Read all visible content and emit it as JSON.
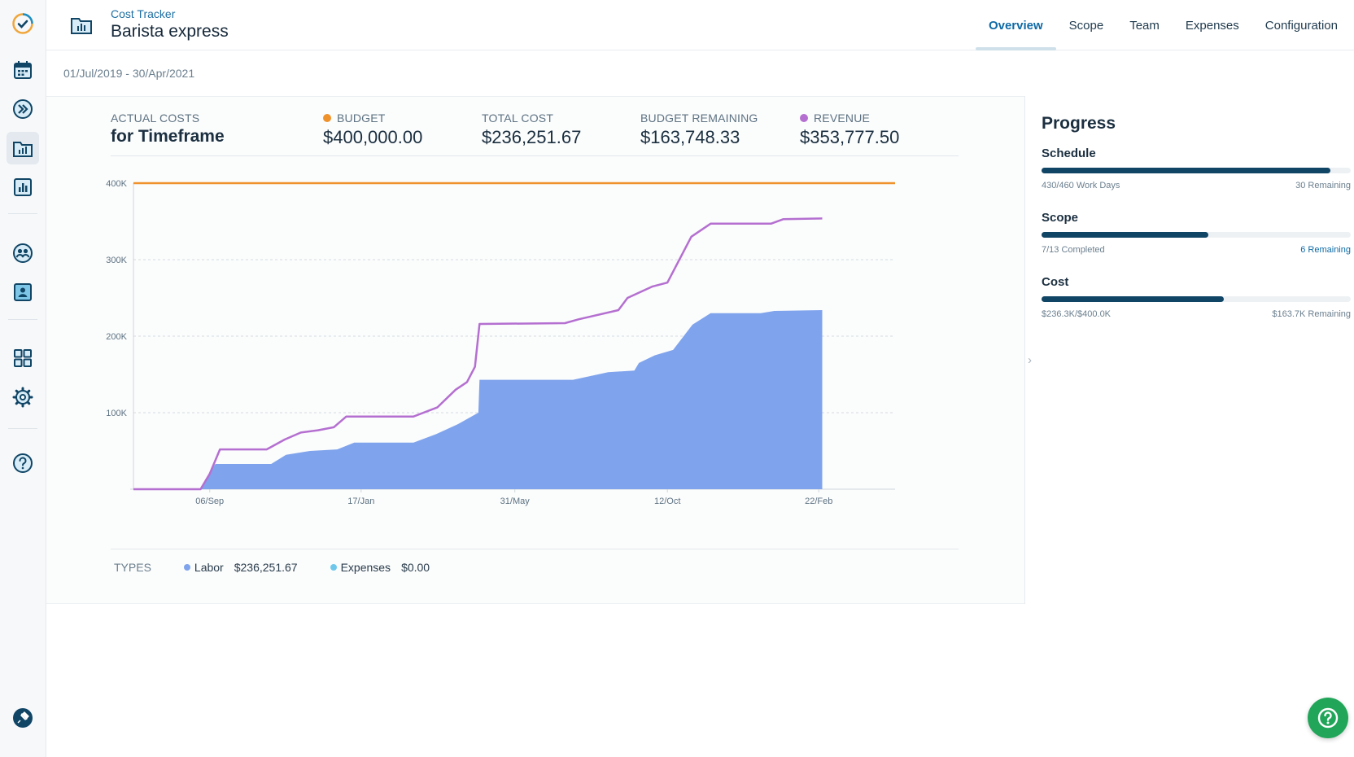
{
  "app": {
    "breadcrumb": "Cost Tracker",
    "title": "Barista express"
  },
  "tabs": [
    {
      "label": "Overview",
      "active": true
    },
    {
      "label": "Scope",
      "active": false
    },
    {
      "label": "Team",
      "active": false
    },
    {
      "label": "Expenses",
      "active": false
    },
    {
      "label": "Configuration",
      "active": false
    }
  ],
  "date_range": "01/Jul/2019 - 30/Apr/2021",
  "rail_icons": [
    "app-logo-icon",
    "calendar-icon",
    "fast-forward-icon",
    "folder-chart-icon",
    "bar-chart-icon",
    "team-icon",
    "contact-icon",
    "dashboard-grid-icon",
    "gear-icon",
    "help-icon",
    "pin-icon"
  ],
  "stats": {
    "actual_costs_label": "ACTUAL COSTS",
    "actual_costs_sub": "for Timeframe",
    "budget_label": "BUDGET",
    "budget_value": "$400,000.00",
    "total_cost_label": "TOTAL COST",
    "total_cost_value": "$236,251.67",
    "budget_remaining_label": "BUDGET REMAINING",
    "budget_remaining_value": "$163,748.33",
    "revenue_label": "REVENUE",
    "revenue_value": "$353,777.50"
  },
  "colors": {
    "budget": "#f0922b",
    "revenue": "#b46fd0",
    "labor": "#7fa3ec",
    "expenses": "#6fc8ec",
    "accent": "#0e6aa5",
    "bar": "#104565"
  },
  "chart_data": {
    "type": "area",
    "x_ticks": [
      "06/Sep",
      "17/Jan",
      "31/May",
      "12/Oct",
      "22/Feb"
    ],
    "y_ticks": [
      "100K",
      "200K",
      "300K",
      "400K"
    ],
    "ylim": [
      0,
      400000
    ],
    "budget_line": 400000,
    "series": [
      {
        "name": "Labor",
        "kind": "area",
        "x": [
          "01/Jul/2019",
          "29/Aug/2019",
          "06/Sep/2019",
          "11/Sep/2019",
          "30/Oct/2019",
          "12/Nov/2019",
          "03/Dec/2019",
          "27/Dec/2019",
          "11/Jan/2020",
          "03/Mar/2020",
          "23/Mar/2020",
          "11/Apr/2020",
          "29/Apr/2020",
          "30/Apr/2020",
          "21/Jul/2020",
          "12/Aug/2020",
          "21/Aug/2020",
          "13/Sep/2020",
          "17/Sep/2020",
          "01/Oct/2020",
          "17/Oct/2020",
          "03/Nov/2020",
          "19/Nov/2020",
          "02/Jan/2021",
          "14/Jan/2021",
          "25/Feb/2021"
        ],
        "y": [
          0,
          0,
          22000,
          33000,
          33000,
          45000,
          50000,
          52000,
          61000,
          61000,
          72000,
          85000,
          100000,
          143000,
          143000,
          150000,
          153000,
          155000,
          165000,
          175000,
          182000,
          215000,
          230000,
          230000,
          233000,
          234000
        ]
      },
      {
        "name": "Revenue",
        "kind": "line",
        "x": [
          "01/Jul/2019",
          "29/Aug/2019",
          "06/Sep/2019",
          "15/Sep/2019",
          "26/Oct/2019",
          "11/Nov/2019",
          "25/Nov/2019",
          "10/Dec/2019",
          "24/Dec/2019",
          "04/Jan/2020",
          "03/Mar/2020",
          "24/Mar/2020",
          "09/Apr/2020",
          "19/Apr/2020",
          "26/Apr/2020",
          "30/Apr/2020",
          "14/Jul/2020",
          "26/Jul/2020",
          "30/Aug/2020",
          "07/Sep/2020",
          "29/Sep/2020",
          "12/Oct/2020",
          "02/Nov/2020",
          "19/Nov/2020",
          "11/Jan/2021",
          "22/Jan/2021",
          "25/Feb/2021"
        ],
        "y": [
          0,
          0,
          20000,
          52000,
          52000,
          65000,
          74000,
          77000,
          81000,
          95000,
          95000,
          107000,
          130000,
          140000,
          160000,
          216000,
          217000,
          222000,
          234000,
          250000,
          265000,
          270000,
          330000,
          347000,
          347000,
          353000,
          353777.5
        ]
      }
    ]
  },
  "types": {
    "label": "TYPES",
    "items": [
      {
        "name": "Labor",
        "value": "$236,251.67"
      },
      {
        "name": "Expenses",
        "value": "$0.00"
      }
    ]
  },
  "progress": {
    "title": "Progress",
    "metrics": [
      {
        "name": "Schedule",
        "fraction": 0.935,
        "left": "430/460 Work Days",
        "right": "30 Remaining"
      },
      {
        "name": "Scope",
        "fraction": 0.54,
        "left": "7/13 Completed",
        "right": "6 Remaining"
      },
      {
        "name": "Cost",
        "fraction": 0.59,
        "left": "$236.3K/$400.0K",
        "right": "$163.7K Remaining"
      }
    ]
  }
}
